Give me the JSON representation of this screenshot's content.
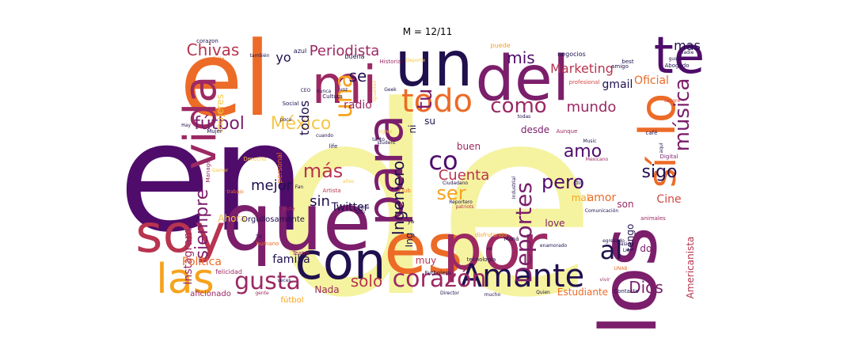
{
  "title": "M = 12/11",
  "palette": {
    "dark": "#20104e",
    "violet": "#4f0c6b",
    "plum": "#7b1e6b",
    "magenta": "#9c2963",
    "rose": "#b8344f",
    "red": "#d44842",
    "orange": "#ec6b27",
    "amber": "#f7a21b",
    "gold": "#f6c745",
    "yellow": "#f5f3a0"
  },
  "words": [
    {
      "text": "de",
      "color": "yellow"
    },
    {
      "text": "en",
      "color": "violet"
    },
    {
      "text": "el",
      "color": "orange"
    },
    {
      "text": "que",
      "color": "plum"
    },
    {
      "text": "los",
      "color": "plum"
    },
    {
      "text": "soy",
      "color": "rose"
    },
    {
      "text": "un",
      "color": "dark"
    },
    {
      "text": "es",
      "color": "orange"
    },
    {
      "text": "por",
      "color": "magenta"
    },
    {
      "text": "del",
      "color": "plum"
    },
    {
      "text": "mi",
      "color": "magenta"
    },
    {
      "text": "con",
      "color": "dark"
    },
    {
      "text": "te",
      "color": "violet"
    },
    {
      "text": "vida",
      "color": "magenta"
    },
    {
      "text": "para",
      "color": "plum"
    },
    {
      "text": "las",
      "color": "amber"
    },
    {
      "text": "Amante",
      "color": "dark"
    },
    {
      "text": "lo",
      "color": "orange"
    },
    {
      "text": "todo",
      "color": "orange"
    },
    {
      "text": "corazón",
      "color": "magenta"
    },
    {
      "text": "gusta",
      "color": "magenta"
    },
    {
      "text": "sí",
      "color": "orange"
    },
    {
      "text": "una",
      "color": "amber"
    },
    {
      "text": "co",
      "color": "violet"
    },
    {
      "text": "música",
      "color": "plum"
    },
    {
      "text": "al",
      "color": "dark"
    },
    {
      "text": "Deportes",
      "color": "plum"
    },
    {
      "text": "como",
      "color": "magenta"
    },
    {
      "text": "ser",
      "color": "amber"
    },
    {
      "text": "más",
      "color": "rose"
    },
    {
      "text": "México",
      "color": "gold"
    },
    {
      "text": "fútbol",
      "color": "plum"
    },
    {
      "text": "siempre",
      "color": "plum"
    },
    {
      "text": "Chivas",
      "color": "rose"
    },
    {
      "text": "Periodista",
      "color": "magenta"
    },
    {
      "text": "pero",
      "color": "violet"
    },
    {
      "text": "tu",
      "color": "plum"
    },
    {
      "text": "se",
      "color": "dark"
    },
    {
      "text": "mis",
      "color": "violet"
    },
    {
      "text": "sigo",
      "color": "dark"
    },
    {
      "text": "solo",
      "color": "rose"
    },
    {
      "text": "Dios",
      "color": "plum"
    },
    {
      "text": "Ingeniero",
      "color": "dark"
    },
    {
      "text": "amo",
      "color": "violet"
    },
    {
      "text": "mejor",
      "color": "dark"
    },
    {
      "text": "Cuenta",
      "color": "rose"
    },
    {
      "text": "Instagram",
      "color": "magenta"
    },
    {
      "text": "Marketing",
      "color": "rose"
    },
    {
      "text": "Oficial",
      "color": "orange"
    },
    {
      "text": "Política",
      "color": "orange"
    },
    {
      "text": "familia",
      "color": "dark"
    },
    {
      "text": "sin",
      "color": "dark"
    },
    {
      "text": "mundo",
      "color": "magenta"
    },
    {
      "text": "Twitter",
      "color": "dark"
    },
    {
      "text": "Americanista",
      "color": "rose"
    },
    {
      "text": "Estudiante",
      "color": "orange"
    },
    {
      "text": "amor",
      "color": "orange"
    },
    {
      "text": "Cine",
      "color": "red"
    },
    {
      "text": "mas",
      "color": "dark"
    },
    {
      "text": "yo",
      "color": "dark"
    },
    {
      "text": "todos",
      "color": "dark"
    },
    {
      "text": "radio",
      "color": "magenta"
    },
    {
      "text": "Nada",
      "color": "magenta"
    },
    {
      "text": "mujeres",
      "color": "gold"
    },
    {
      "text": "aficionado",
      "color": "magenta"
    },
    {
      "text": "muy",
      "color": "rose"
    },
    {
      "text": "love",
      "color": "plum"
    },
    {
      "text": "buen",
      "color": "magenta"
    },
    {
      "text": "desde",
      "color": "plum"
    },
    {
      "text": "gmail",
      "color": "dark"
    },
    {
      "text": "tengo",
      "color": "dark"
    },
    {
      "text": "Ahora",
      "color": "gold"
    },
    {
      "text": "Orgullosamente",
      "color": "dark"
    },
    {
      "text": "fútbol",
      "color": "amber"
    },
    {
      "text": "son",
      "color": "magenta"
    },
    {
      "text": "dos",
      "color": "plum"
    },
    {
      "text": "ni",
      "color": "dark"
    },
    {
      "text": "su",
      "color": "dark"
    },
    {
      "text": "mal",
      "color": "amber"
    },
    {
      "text": "Ing",
      "color": "dark"
    },
    {
      "text": "buena",
      "color": "dark"
    },
    {
      "text": "azul",
      "color": "dark"
    },
    {
      "text": "corazon",
      "color": "dark"
    },
    {
      "text": "feliz",
      "color": "orange"
    },
    {
      "text": "Historia",
      "color": "magenta"
    },
    {
      "text": "negocios",
      "color": "dark"
    },
    {
      "text": "amigo",
      "color": "dark"
    },
    {
      "text": "profesional",
      "color": "red"
    },
    {
      "text": "Social",
      "color": "dark"
    },
    {
      "text": "Cultura",
      "color": "dark"
    },
    {
      "text": "poco",
      "color": "dark"
    },
    {
      "text": "cuando",
      "color": "dark"
    },
    {
      "text": "personal",
      "color": "orange"
    },
    {
      "text": "Mujer",
      "color": "dark"
    },
    {
      "text": "Manager",
      "color": "magenta"
    },
    {
      "text": "café",
      "color": "dark"
    },
    {
      "text": "Digital",
      "color": "plum"
    },
    {
      "text": "día",
      "color": "dark"
    },
    {
      "text": "Aunque",
      "color": "magenta"
    },
    {
      "text": "Music",
      "color": "dark"
    },
    {
      "text": "Artista",
      "color": "rose"
    },
    {
      "text": "años",
      "color": "gold"
    },
    {
      "text": "Club",
      "color": "orange"
    },
    {
      "text": "Ciudadano",
      "color": "dark"
    },
    {
      "text": "Reportero",
      "color": "dark"
    },
    {
      "text": "patriots",
      "color": "rose"
    },
    {
      "text": "Comunicación",
      "color": "dark"
    },
    {
      "text": "animales",
      "color": "magenta"
    },
    {
      "text": "Contacto",
      "color": "dark"
    },
    {
      "text": "pasión",
      "color": "dark"
    },
    {
      "text": "Lic",
      "color": "dark"
    },
    {
      "text": "vivir",
      "color": "magenta"
    },
    {
      "text": "tecnología",
      "color": "dark"
    },
    {
      "text": "Teatro",
      "color": "magenta"
    },
    {
      "text": "felicidad",
      "color": "magenta"
    },
    {
      "text": "humano",
      "color": "orange"
    },
    {
      "text": "este",
      "color": "magenta"
    },
    {
      "text": "trabajo",
      "color": "orange"
    },
    {
      "text": "Fan",
      "color": "dark"
    },
    {
      "text": "Futbolero",
      "color": "dark"
    },
    {
      "text": "Director",
      "color": "dark"
    },
    {
      "text": "mucho",
      "color": "dark"
    },
    {
      "text": "Quien",
      "color": "dark"
    },
    {
      "text": "UNAB",
      "color": "orange"
    },
    {
      "text": "Maná",
      "color": "dark"
    },
    {
      "text": "disfrutando",
      "color": "amber"
    },
    {
      "text": "egresado",
      "color": "dark"
    },
    {
      "text": "enamorado",
      "color": "dark"
    },
    {
      "text": "gente",
      "color": "magenta"
    },
    {
      "text": "veces",
      "color": "dark"
    },
    {
      "text": "Derecho",
      "color": "gold"
    },
    {
      "text": "life",
      "color": "dark"
    },
    {
      "text": "student",
      "color": "dark"
    },
    {
      "text": "Geek",
      "color": "dark"
    },
    {
      "text": "Deporte",
      "color": "gold"
    },
    {
      "text": "nunca",
      "color": "dark"
    },
    {
      "text": "también",
      "color": "dark"
    },
    {
      "text": "puede",
      "color": "amber"
    },
    {
      "text": "Mexicano",
      "color": "magenta"
    },
    {
      "text": "Industrial",
      "color": "dark"
    },
    {
      "text": "Abogado",
      "color": "dark"
    },
    {
      "text": "gusto",
      "color": "dark"
    },
    {
      "text": "sangre",
      "color": "red"
    },
    {
      "text": "Igualdad",
      "color": "gold"
    },
    {
      "text": "tigres",
      "color": "gold"
    },
    {
      "text": "tiene",
      "color": "dark"
    },
    {
      "text": "sólo",
      "color": "dark"
    },
    {
      "text": "tanto",
      "color": "dark"
    },
    {
      "text": "todas",
      "color": "dark"
    },
    {
      "text": "aquí",
      "color": "dark"
    },
    {
      "text": "best",
      "color": "dark"
    },
    {
      "text": "nadie",
      "color": "dark"
    },
    {
      "text": "Hay",
      "color": "dark"
    },
    {
      "text": "TV",
      "color": "dark"
    },
    {
      "text": "CEO",
      "color": "dark"
    },
    {
      "text": "voz",
      "color": "dark"
    },
    {
      "text": "ya",
      "color": "dark"
    },
    {
      "text": "va",
      "color": "dark"
    },
    {
      "text": "Gamer",
      "color": "gold"
    }
  ]
}
